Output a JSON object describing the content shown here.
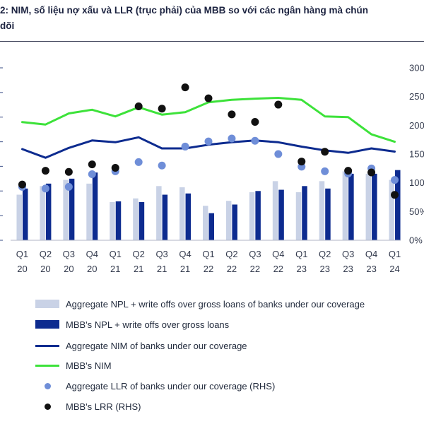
{
  "title": {
    "line1": "2: NIM, số liệu nợ xấu và LLR (trục phải) của MBB so với các ngân hàng mà chún",
    "line2": "dõi"
  },
  "colors": {
    "agg_npl": "#c9d2e6",
    "mbb_npl": "#0d2b8f",
    "agg_nim": "#0d2b8f",
    "mbb_nim": "#3de23a",
    "agg_llr": "#6f8ed8",
    "mbb_llr": "#111111"
  },
  "chart_data": {
    "type": "bar",
    "categories": [
      [
        "Q1",
        "20"
      ],
      [
        "Q2",
        "20"
      ],
      [
        "Q3",
        "20"
      ],
      [
        "Q4",
        "20"
      ],
      [
        "Q1",
        "21"
      ],
      [
        "Q2",
        "21"
      ],
      [
        "Q3",
        "21"
      ],
      [
        "Q4",
        "21"
      ],
      [
        "Q1",
        "22"
      ],
      [
        "Q2",
        "22"
      ],
      [
        "Q3",
        "22"
      ],
      [
        "Q4",
        "22"
      ],
      [
        "Q1",
        "23"
      ],
      [
        "Q2",
        "23"
      ],
      [
        "Q3",
        "23"
      ],
      [
        "Q4",
        "23"
      ],
      [
        "Q1",
        "24"
      ]
    ],
    "left_axis": {
      "ylim": [
        0,
        7.0
      ],
      "tick_labels_visible": false,
      "ticks": [
        0,
        1,
        2,
        3,
        4,
        5,
        6,
        7
      ]
    },
    "right_axis": {
      "ylim": [
        0,
        300
      ],
      "ticks": [
        "0%",
        "50%",
        "100%",
        "150%",
        "200%",
        "250%",
        "300%"
      ]
    },
    "series": [
      {
        "name": "Aggregate NPL + write offs over gross loans of banks under our coverage",
        "kind": "bar",
        "axis": "left",
        "values": [
          1.85,
          2.2,
          2.45,
          2.3,
          1.55,
          1.7,
          2.2,
          2.15,
          1.4,
          1.6,
          1.95,
          2.4,
          1.95,
          2.4,
          2.8,
          2.7,
          2.45
        ]
      },
      {
        "name": "MBB's NPL + write offs over gross loans",
        "kind": "bar",
        "axis": "left",
        "values": [
          2.1,
          2.3,
          2.5,
          2.75,
          1.58,
          1.55,
          1.85,
          1.9,
          1.1,
          1.45,
          2.0,
          2.05,
          2.2,
          2.1,
          2.7,
          2.7,
          2.85
        ]
      },
      {
        "name": "Aggregate NIM of banks under our coverage",
        "kind": "line",
        "axis": "left",
        "values": [
          3.7,
          3.35,
          3.75,
          4.05,
          3.98,
          4.18,
          3.73,
          3.73,
          3.88,
          3.98,
          4.05,
          3.98,
          3.8,
          3.65,
          3.55,
          3.73,
          3.6
        ]
      },
      {
        "name": "MBB's NIM",
        "kind": "line",
        "axis": "left",
        "values": [
          4.8,
          4.7,
          5.15,
          5.3,
          5.03,
          5.4,
          5.1,
          5.2,
          5.6,
          5.7,
          5.75,
          5.78,
          5.7,
          5.03,
          5.0,
          4.3,
          4.0
        ]
      },
      {
        "name": "Aggregate LLR of banks under our coverage (RHS)",
        "kind": "scatter",
        "axis": "right",
        "values": [
          93,
          90,
          93,
          115,
          120,
          136,
          130,
          163,
          172,
          177,
          173,
          150,
          128,
          120,
          116,
          125,
          105
        ]
      },
      {
        "name": "MBB's LRR (RHS)",
        "kind": "scatter",
        "axis": "right",
        "values": [
          97,
          121,
          119,
          132,
          126,
          233,
          229,
          266,
          247,
          219,
          206,
          236,
          137,
          154,
          121,
          118,
          79
        ]
      }
    ]
  }
}
